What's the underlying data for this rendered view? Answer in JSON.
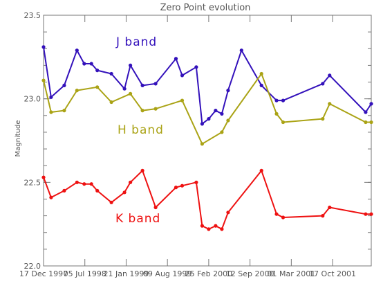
{
  "chart_data": {
    "type": "line",
    "title": "Zero Point evolution",
    "ylabel": "Magnitude",
    "xlabel": "",
    "ylim": [
      22.0,
      23.5
    ],
    "xlim": [
      0,
      100
    ],
    "y_ticks": [
      22.0,
      22.5,
      23.0,
      23.5
    ],
    "y_tick_labels": [
      "22.0",
      "22.5",
      "23.0",
      "23.5"
    ],
    "x_ticks": [
      0,
      12.6,
      25.2,
      37.8,
      50.4,
      63.0,
      75.6,
      88.2
    ],
    "x_tick_labels": [
      "17 Dec 1997",
      "05 Jul 1998",
      "21 Jan 1999",
      "09 Aug 1999",
      "25 Feb 2000",
      "12 Sep 2000",
      "01 Mar 2001",
      "17 Oct 2001"
    ],
    "grid": false,
    "legend": "none",
    "series": [
      {
        "name": "J band",
        "color": "#3311bb",
        "x": [
          0,
          2.3,
          6.3,
          10.2,
          12.4,
          14.6,
          16.4,
          20.7,
          24.7,
          26.5,
          30.2,
          34.2,
          40.4,
          42.3,
          46.6,
          48.4,
          50.4,
          52.5,
          54.4,
          56.3,
          60.4,
          66.5,
          71.1,
          73.1,
          85.2,
          87.3,
          98.3,
          100
        ],
        "values": [
          23.31,
          23.01,
          23.08,
          23.29,
          23.21,
          23.21,
          23.17,
          23.15,
          23.06,
          23.2,
          23.08,
          23.09,
          23.24,
          23.14,
          23.19,
          22.85,
          22.88,
          22.93,
          22.91,
          23.05,
          23.29,
          23.08,
          22.99,
          22.99,
          23.09,
          23.14,
          22.92,
          22.97
        ]
      },
      {
        "name": "H band",
        "color": "#aaa315",
        "x": [
          0,
          2.3,
          6.3,
          10.2,
          16.4,
          20.7,
          26.5,
          30.2,
          34.2,
          42.3,
          48.4,
          54.4,
          56.3,
          66.5,
          71.1,
          73.1,
          85.2,
          87.3,
          98.3,
          100
        ],
        "values": [
          23.11,
          22.92,
          22.93,
          23.05,
          23.07,
          22.98,
          23.03,
          22.93,
          22.94,
          22.99,
          22.73,
          22.8,
          22.87,
          23.15,
          22.91,
          22.86,
          22.88,
          22.97,
          22.86,
          22.86
        ]
      },
      {
        "name": "K band",
        "color": "#ee1111",
        "x": [
          0,
          2.3,
          6.3,
          10.2,
          12.4,
          14.6,
          16.4,
          20.7,
          24.7,
          26.5,
          30.2,
          34.2,
          40.4,
          42.3,
          46.6,
          48.4,
          50.4,
          52.5,
          54.4,
          56.3,
          66.5,
          71.1,
          73.1,
          85.2,
          87.3,
          98.3,
          100
        ],
        "values": [
          22.53,
          22.41,
          22.45,
          22.5,
          22.49,
          22.49,
          22.45,
          22.38,
          22.44,
          22.5,
          22.57,
          22.35,
          22.47,
          22.48,
          22.5,
          22.24,
          22.22,
          22.24,
          22.22,
          22.32,
          22.57,
          22.31,
          22.29,
          22.3,
          22.35,
          22.31,
          22.31
        ]
      }
    ],
    "annotations": [
      {
        "text": "J band",
        "color": "#3311bb"
      },
      {
        "text": "H band",
        "color": "#aaa315"
      },
      {
        "text": "K band",
        "color": "#ee1111"
      }
    ]
  }
}
